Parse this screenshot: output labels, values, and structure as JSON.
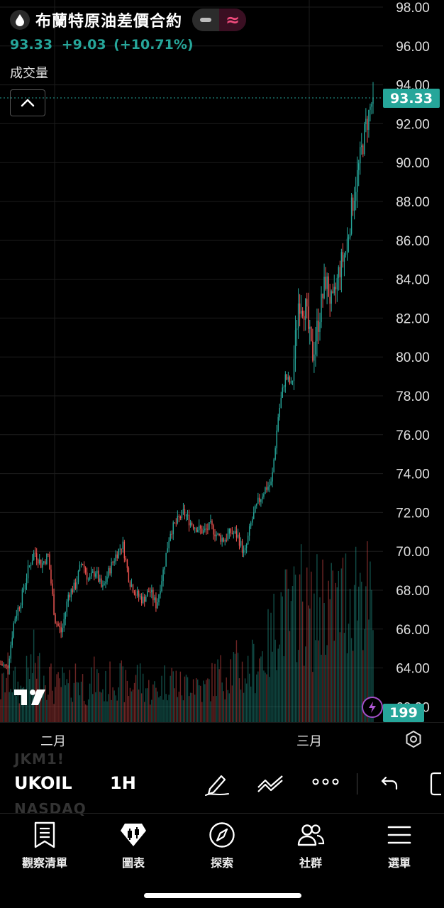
{
  "header": {
    "title": "布蘭特原油差價合約",
    "icon": "oil-drop-icon",
    "quote_price": "93.33",
    "quote_change": "+9.03",
    "quote_pct": "(+10.71%)",
    "volume_label": "成交量"
  },
  "chart_data": {
    "type": "candlestick",
    "symbol": "UKOIL",
    "interval": "1H",
    "last_price": 93.33,
    "last_volume": 199,
    "y_tick_labels": [
      "98.00",
      "96.00",
      "94.00",
      "92.00",
      "90.00",
      "88.00",
      "86.00",
      "84.00",
      "82.00",
      "80.00",
      "78.00",
      "76.00",
      "74.00",
      "72.00",
      "70.00",
      "68.00",
      "66.00",
      "64.00",
      "62.00"
    ],
    "ylim": [
      61,
      98.4
    ],
    "x_tick_labels": [
      "二月",
      "三月"
    ],
    "price_path": [
      64.2,
      64.0,
      66.5,
      67.5,
      69.0,
      70.0,
      69.3,
      69.8,
      66.5,
      65.8,
      67.8,
      68.2,
      69.5,
      68.5,
      69.0,
      68.0,
      69.0,
      69.8,
      70.4,
      68.5,
      67.8,
      67.5,
      68.0,
      67.2,
      69.0,
      71.0,
      71.5,
      72.0,
      71.5,
      71.2,
      71.0,
      71.3,
      70.8,
      70.6,
      71.0,
      70.8,
      69.8,
      71.5,
      72.5,
      73.2,
      73.5,
      77.0,
      79.0,
      78.5,
      83.0,
      82.5,
      80.0,
      82.0,
      84.0,
      82.5,
      84.5,
      85.5,
      88.0,
      90.0,
      92.0,
      93.33
    ],
    "volume_path": [
      0.2,
      0.3,
      0.25,
      0.2,
      0.3,
      0.4,
      0.3,
      0.3,
      0.2,
      0.25,
      0.2,
      0.3,
      0.25,
      0.2,
      0.3,
      0.2,
      0.25,
      0.3,
      0.25,
      0.2,
      0.3,
      0.25,
      0.2,
      0.2,
      0.25,
      0.3,
      0.25,
      0.2,
      0.3,
      0.25,
      0.2,
      0.25,
      0.3,
      0.3,
      0.35,
      0.35,
      0.3,
      0.35,
      0.4,
      0.45,
      0.5,
      0.75,
      0.7,
      0.6,
      0.85,
      0.7,
      0.65,
      0.75,
      0.8,
      0.7,
      0.75,
      0.8,
      0.85,
      0.9,
      0.85,
      0.6
    ],
    "colors": {
      "up": "#26a69a",
      "down": "#ef5350",
      "grid": "#1c1c1c"
    }
  },
  "ghost_symbols": {
    "above": "JKM1!",
    "below": "NASDAQ"
  },
  "toolbar": {
    "symbol": "UKOIL",
    "interval": "1H",
    "icons": [
      "pencil-icon",
      "trend-lines-icon",
      "more-icon",
      "undo-icon",
      "fullscreen-icon"
    ]
  },
  "nav": {
    "items": [
      {
        "label": "觀察清單",
        "icon": "watchlist-icon"
      },
      {
        "label": "圖表",
        "icon": "chart-icon"
      },
      {
        "label": "探索",
        "icon": "compass-icon"
      },
      {
        "label": "社群",
        "icon": "community-icon"
      },
      {
        "label": "選單",
        "icon": "menu-icon"
      }
    ]
  }
}
